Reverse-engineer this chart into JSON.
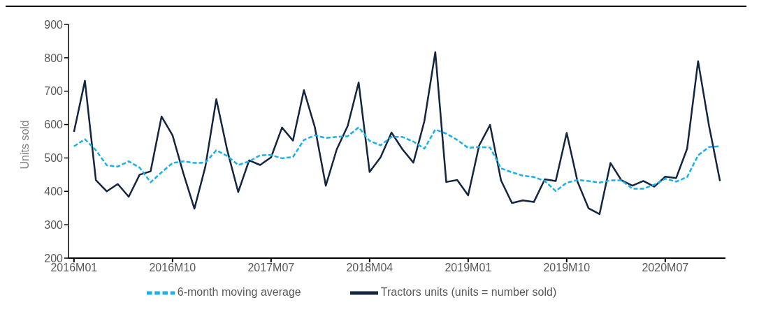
{
  "chart_data": {
    "type": "line",
    "ylabel": "Units sold",
    "categories": [
      "2016M01",
      null,
      null,
      null,
      null,
      null,
      null,
      null,
      null,
      "2016M10",
      null,
      null,
      null,
      null,
      null,
      null,
      null,
      null,
      "2017M07",
      null,
      null,
      null,
      null,
      null,
      null,
      null,
      null,
      "2018M04",
      null,
      null,
      null,
      null,
      null,
      null,
      null,
      null,
      "2019M01",
      null,
      null,
      null,
      null,
      null,
      null,
      null,
      null,
      "2019M10",
      null,
      null,
      null,
      null,
      null,
      null,
      null,
      null,
      "2020M07",
      null,
      null,
      null,
      null,
      null
    ],
    "series": [
      {
        "name": "Tractors units (units = number sold)",
        "color": "#14253f",
        "line_style": "solid",
        "values": [
          578,
          731,
          434,
          400,
          422,
          384,
          450,
          460,
          624,
          568,
          453,
          348,
          474,
          676,
          523,
          398,
          493,
          479,
          502,
          591,
          552,
          703,
          592,
          417,
          526,
          596,
          726,
          458,
          502,
          576,
          526,
          486,
          610,
          817,
          428,
          434,
          388,
          537,
          599,
          433,
          365,
          373,
          368,
          436,
          431,
          575,
          428,
          349,
          332,
          485,
          433,
          417,
          431,
          414,
          444,
          440,
          528,
          790,
          596,
          431
        ]
      },
      {
        "name": "6-month moving average",
        "color": "#1ab0e8",
        "line_style": "dashed",
        "values": [
          535,
          556,
          523,
          478,
          474,
          490,
          471,
          427,
          457,
          485,
          490,
          485,
          486,
          523,
          506,
          479,
          490,
          508,
          509,
          499,
          503,
          554,
          568,
          560,
          563,
          565,
          592,
          551,
          538,
          563,
          563,
          549,
          528,
          585,
          573,
          554,
          530,
          533,
          531,
          469,
          457,
          447,
          443,
          431,
          401,
          426,
          434,
          431,
          426,
          433,
          433,
          408,
          408,
          420,
          438,
          429,
          443,
          508,
          533,
          535
        ]
      }
    ],
    "ylim": [
      200,
      900
    ],
    "yticks": [
      200,
      300,
      400,
      500,
      600,
      700,
      800,
      900
    ],
    "grid": false,
    "legend": "bottom",
    "marker": "none"
  }
}
